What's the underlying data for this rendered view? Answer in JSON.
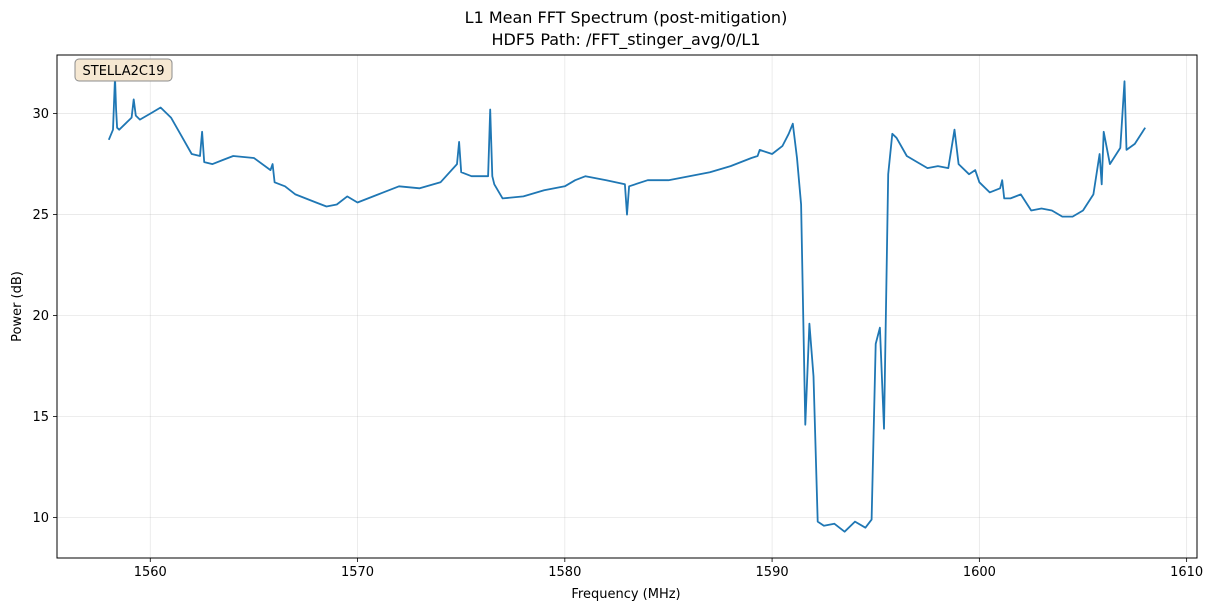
{
  "chart_data": {
    "type": "line",
    "title": "L1 Mean FFT Spectrum (post-mitigation)",
    "subtitle": "HDF5 Path: /FFT_stinger_avg/0/L1",
    "xlabel": "Frequency (MHz)",
    "ylabel": "Power (dB)",
    "xlim": [
      1555.5,
      1610.5
    ],
    "ylim": [
      8.0,
      32.9
    ],
    "xticks": [
      1560,
      1570,
      1580,
      1590,
      1600,
      1610
    ],
    "yticks": [
      10,
      15,
      20,
      25,
      30
    ],
    "grid": true,
    "annotation": "STELLA2C19",
    "series": [
      {
        "color": "#1f77b4",
        "x": [
          1558.0,
          1558.2,
          1558.3,
          1558.35,
          1558.4,
          1558.5,
          1558.8,
          1559.1,
          1559.2,
          1559.3,
          1559.5,
          1560.0,
          1560.5,
          1561.0,
          1561.5,
          1562.0,
          1562.4,
          1562.5,
          1562.6,
          1563.0,
          1563.5,
          1564.0,
          1565.0,
          1565.8,
          1565.9,
          1566.0,
          1566.5,
          1567.0,
          1568.0,
          1568.5,
          1569.0,
          1569.5,
          1570.0,
          1571.0,
          1572.0,
          1573.0,
          1574.0,
          1574.8,
          1574.9,
          1575.0,
          1575.5,
          1576.3,
          1576.4,
          1576.5,
          1576.6,
          1577.0,
          1578.0,
          1579.0,
          1580.0,
          1580.5,
          1581.0,
          1582.0,
          1582.9,
          1583.0,
          1583.1,
          1584.0,
          1585.0,
          1586.0,
          1587.0,
          1588.0,
          1589.0,
          1589.3,
          1589.4,
          1590.0,
          1590.5,
          1590.8,
          1591.0,
          1591.2,
          1591.4,
          1591.6,
          1591.8,
          1592.0,
          1592.2,
          1592.5,
          1593.0,
          1593.5,
          1594.0,
          1594.5,
          1594.8,
          1595.0,
          1595.2,
          1595.4,
          1595.6,
          1595.8,
          1596.0,
          1596.5,
          1597.0,
          1597.5,
          1598.0,
          1598.5,
          1598.8,
          1599.0,
          1599.5,
          1599.8,
          1600.0,
          1600.5,
          1601.0,
          1601.1,
          1601.2,
          1601.5,
          1602.0,
          1602.5,
          1603.0,
          1603.5,
          1604.0,
          1604.5,
          1605.0,
          1605.5,
          1605.8,
          1605.9,
          1606.0,
          1606.3,
          1606.8,
          1607.0,
          1607.1,
          1607.5,
          1608.0
        ],
        "y": [
          28.7,
          29.2,
          31.8,
          30.2,
          29.3,
          29.2,
          29.5,
          29.8,
          30.7,
          29.9,
          29.7,
          30.0,
          30.3,
          29.8,
          28.9,
          28.0,
          27.9,
          29.1,
          27.6,
          27.5,
          27.7,
          27.9,
          27.8,
          27.2,
          27.5,
          26.6,
          26.4,
          26.0,
          25.6,
          25.4,
          25.5,
          25.9,
          25.6,
          26.0,
          26.4,
          26.3,
          26.6,
          27.5,
          28.6,
          27.1,
          26.9,
          26.9,
          30.2,
          26.9,
          26.5,
          25.8,
          25.9,
          26.2,
          26.4,
          26.7,
          26.9,
          26.7,
          26.5,
          25.0,
          26.4,
          26.7,
          26.7,
          26.9,
          27.1,
          27.4,
          27.8,
          27.9,
          28.2,
          28.0,
          28.4,
          29.0,
          29.5,
          27.8,
          25.5,
          14.6,
          19.6,
          17.0,
          9.8,
          9.6,
          9.7,
          9.3,
          9.8,
          9.5,
          9.9,
          18.6,
          19.4,
          14.4,
          27.0,
          29.0,
          28.8,
          27.9,
          27.6,
          27.3,
          27.4,
          27.3,
          29.2,
          27.5,
          27.0,
          27.2,
          26.6,
          26.1,
          26.3,
          26.7,
          25.8,
          25.8,
          26.0,
          25.2,
          25.3,
          25.2,
          24.9,
          24.9,
          25.2,
          26.0,
          28.0,
          26.5,
          29.1,
          27.5,
          28.3,
          31.6,
          28.2,
          28.5,
          29.3
        ]
      }
    ]
  }
}
